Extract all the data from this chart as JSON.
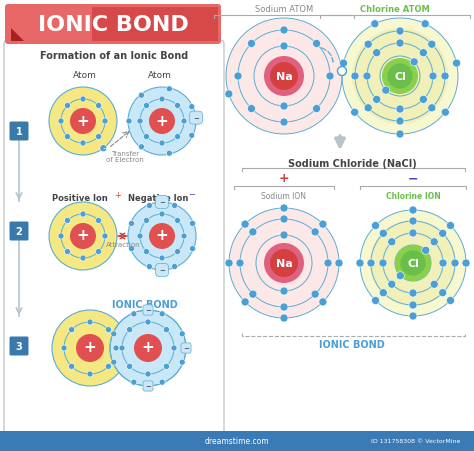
{
  "title": "IONIC BOND",
  "title_bg_light": "#f08080",
  "title_bg_dark": "#d94040",
  "bg_color": "#ffffff",
  "formation_title": "Formation of an Ionic Bond",
  "step1_labels": [
    "Atom",
    "Atom"
  ],
  "step2_label_pos": "Positive Ion",
  "step2_label_neg": "Negative Ion",
  "step3_label": "IONIC BOND",
  "transfer_label": "Transfer\nof Electron",
  "attraction_label": "Attraction",
  "na_color_grad1": "#c0587a",
  "na_color_grad2": "#e06080",
  "cl_color": "#6abf4b",
  "red_nucleus": "#d44040",
  "yellow_atom_color": "#f5e882",
  "blue_atom_color": "#c8e8f8",
  "electron_color": "#4a9fd4",
  "orbit_color": "#5bacd4",
  "step_box_color": "#3a7aaa",
  "arrow_gray": "#b8c4cc",
  "panel_border": "#c8c8c8",
  "sodium_atom_label": "Sodium ATOM",
  "chlorine_atom_label": "Chlorine ATOM",
  "sodium_ion_label": "Sodium ION",
  "chlorine_ion_label": "Chlorine ION",
  "nacl_label": "Sodium Chloride (NaCl)",
  "ionic_bond_label": "IONIC BOND",
  "na_label": "Na",
  "cl_label": "Cl",
  "bottom_color": "#3a7ab5",
  "watermark_text": "ID 131758308 © VectorMine",
  "dreamtime_text": "dreamstime.com",
  "plus_red": "#d44040",
  "minus_blue": "#4444bb",
  "text_gray": "#888888",
  "text_dark": "#444444"
}
